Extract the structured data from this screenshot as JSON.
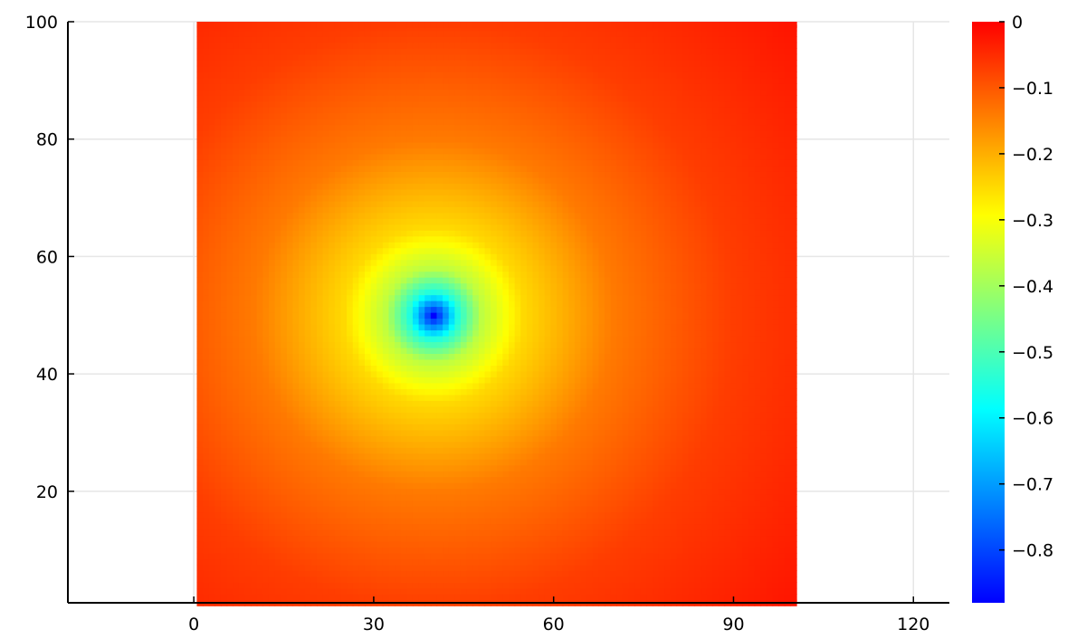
{
  "chart_data": {
    "type": "heatmap",
    "title": "",
    "xlabel": "",
    "ylabel": "",
    "xlim": [
      -21,
      126
    ],
    "ylim": [
      1,
      100
    ],
    "grid": true,
    "x_ticks": [
      0,
      30,
      60,
      90,
      120
    ],
    "y_ticks": [
      20,
      40,
      60,
      80,
      100
    ],
    "x_tick_labels": [
      "0",
      "30",
      "60",
      "90",
      "120"
    ],
    "y_tick_labels": [
      "20",
      "40",
      "60",
      "80",
      "100"
    ],
    "data_extent": {
      "x": [
        1,
        100
      ],
      "y": [
        1,
        100
      ]
    },
    "grid_size": 100,
    "field": {
      "description": "radially symmetric well",
      "center": [
        40,
        50
      ],
      "min_value": -0.88,
      "max_value": 0,
      "samples": [
        {
          "distance": 0,
          "value": -0.88
        },
        {
          "distance": 4,
          "value": -0.55
        },
        {
          "distance": 8,
          "value": -0.37
        },
        {
          "distance": 15,
          "value": -0.25
        },
        {
          "distance": 30,
          "value": -0.14
        },
        {
          "distance": 50,
          "value": -0.07
        },
        {
          "distance": 80,
          "value": -0.02
        }
      ]
    },
    "colorbar": {
      "colormap": "jet",
      "range": [
        -0.88,
        0
      ],
      "ticks": [
        0,
        -0.1,
        -0.2,
        -0.3,
        -0.4,
        -0.5,
        -0.6,
        -0.7,
        -0.8
      ],
      "tick_labels": [
        "0",
        "−0.1",
        "−0.2",
        "−0.3",
        "−0.4",
        "−0.5",
        "−0.6",
        "−0.7",
        "−0.8"
      ],
      "colors": [
        "#0000ff",
        "#0080ff",
        "#00ffff",
        "#80ff80",
        "#ffff00",
        "#ff8000",
        "#ff0000"
      ]
    }
  }
}
